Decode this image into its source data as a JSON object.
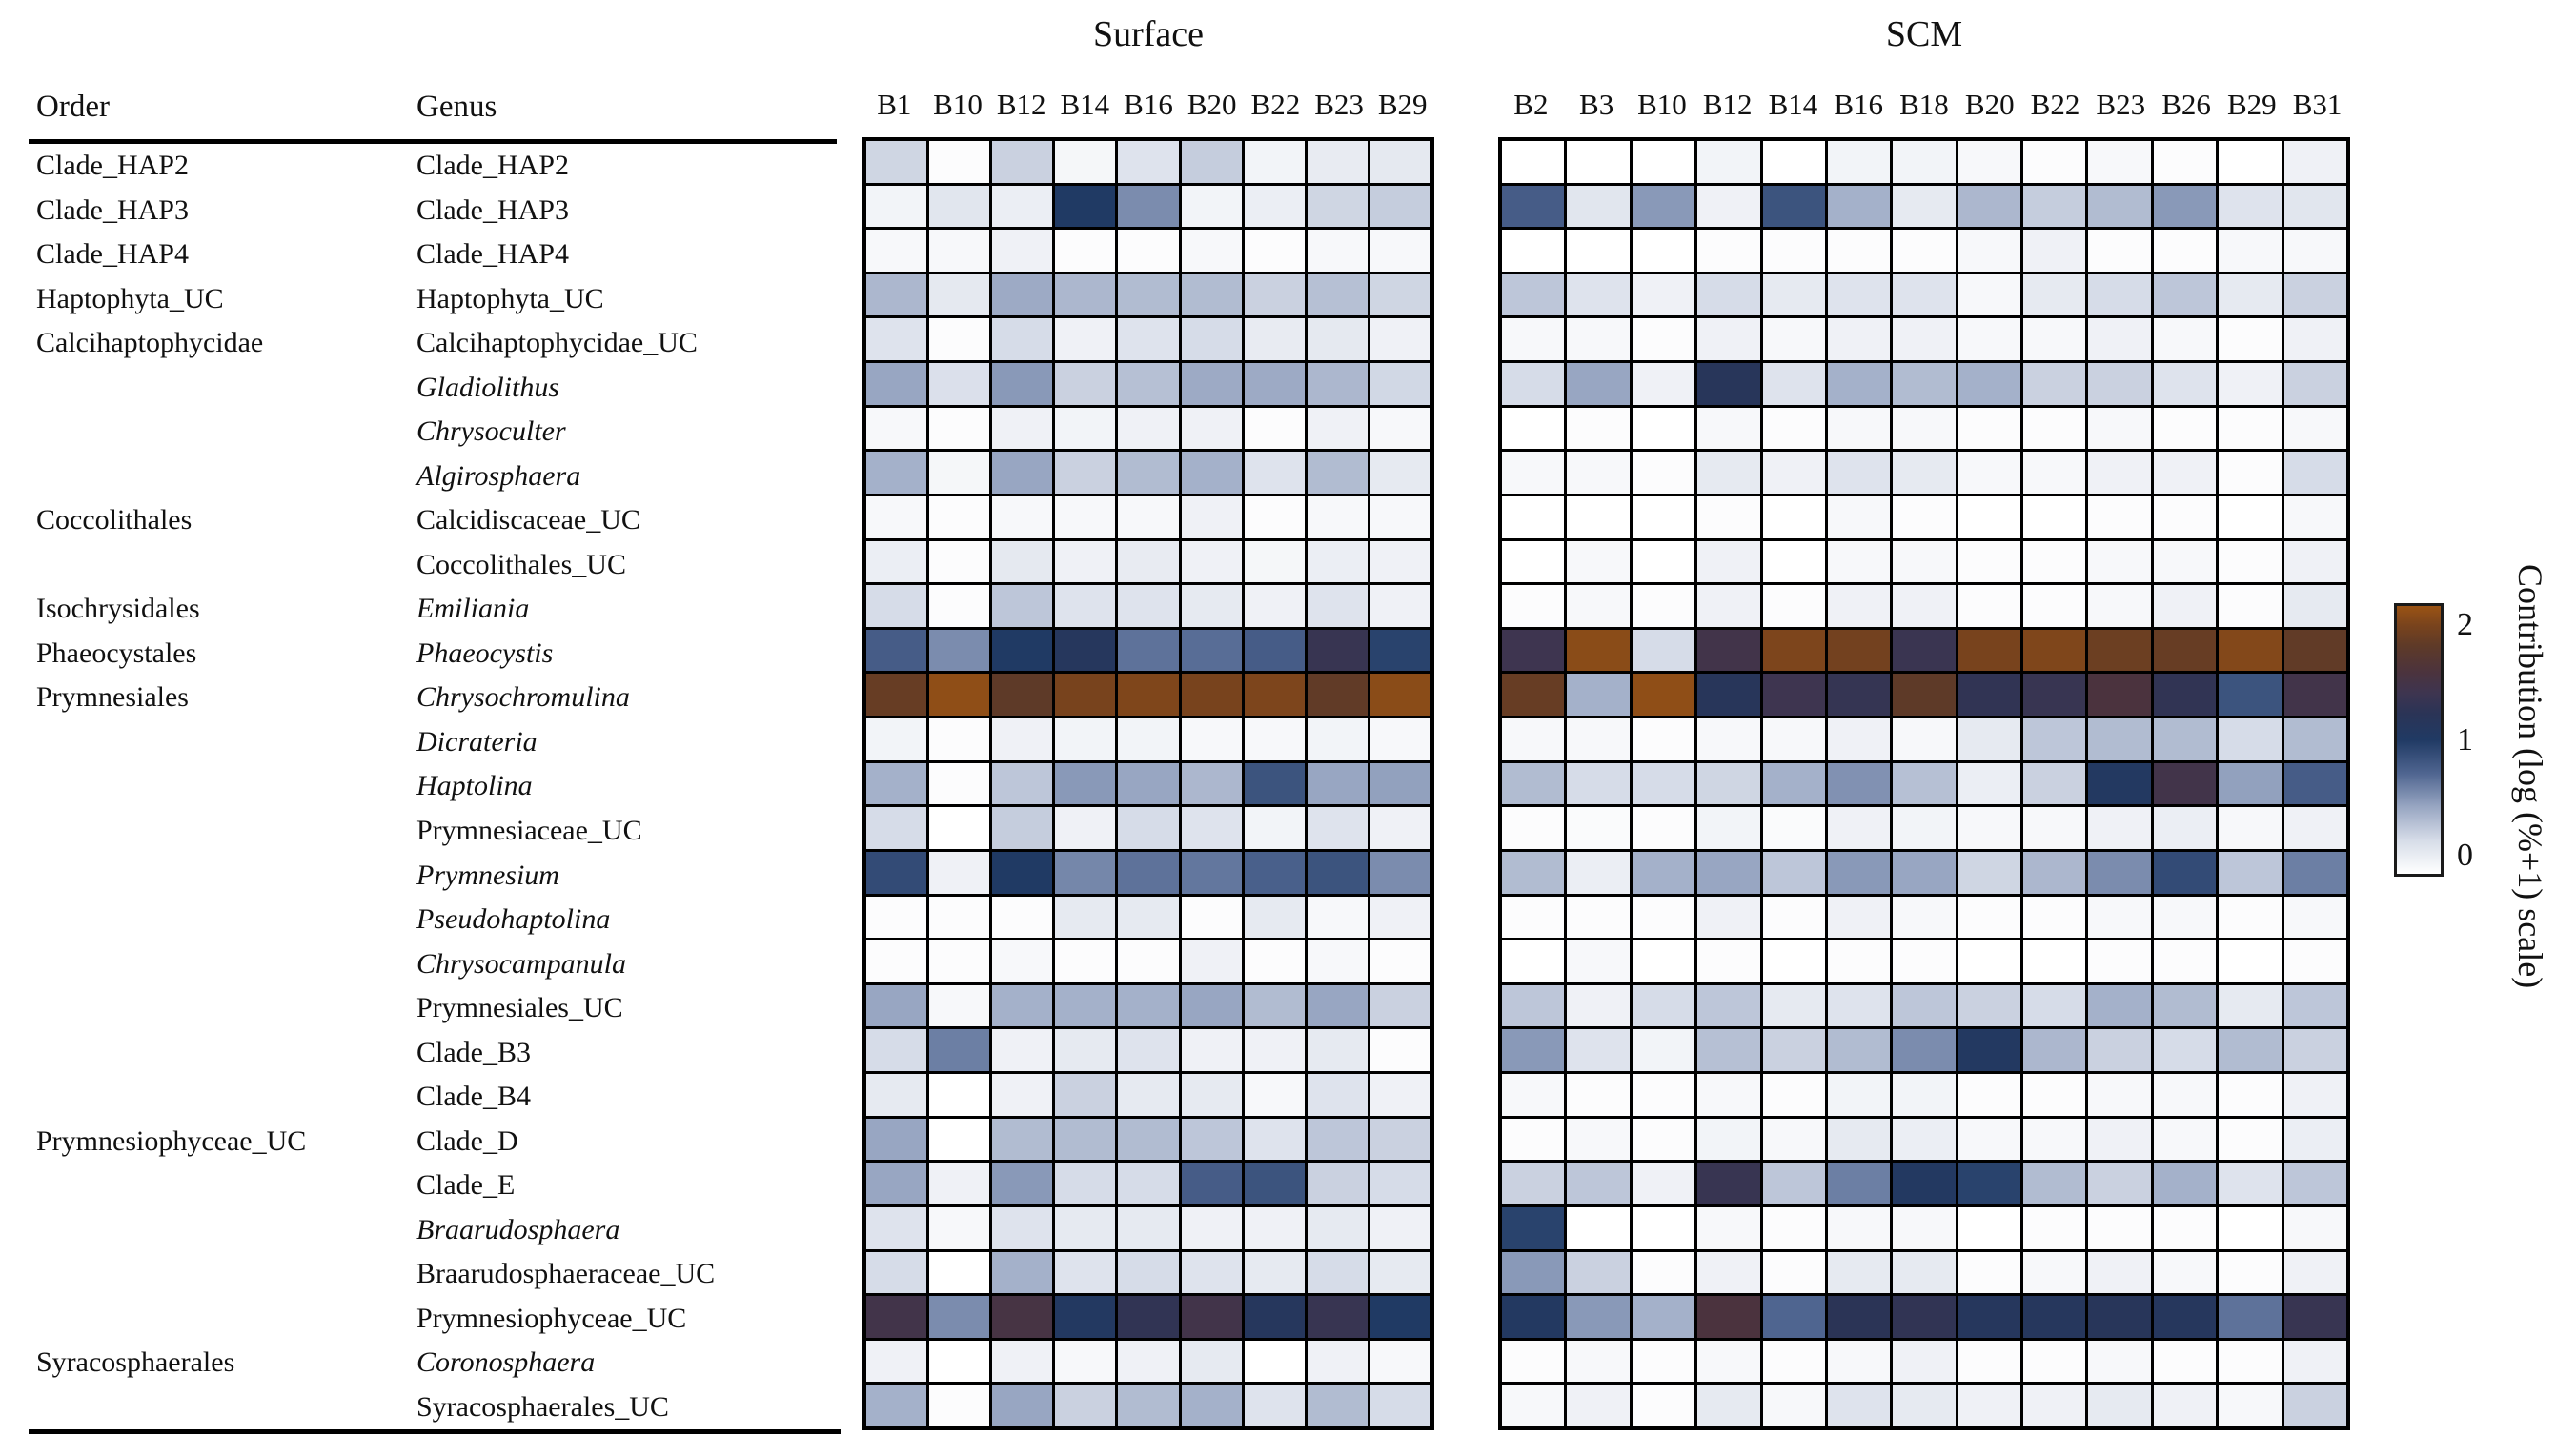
{
  "chart_data": {
    "type": "heatmap",
    "title": "",
    "value_range": [
      0,
      2
    ],
    "grid": true,
    "row_header_labels": {
      "order": "Order",
      "genus": "Genus"
    },
    "panels": [
      {
        "name": "Surface",
        "columns": [
          "B1",
          "B10",
          "B12",
          "B14",
          "B16",
          "B20",
          "B22",
          "B23",
          "B29"
        ]
      },
      {
        "name": "SCM",
        "columns": [
          "B2",
          "B3",
          "B10",
          "B12",
          "B14",
          "B16",
          "B18",
          "B20",
          "B22",
          "B23",
          "B26",
          "B29",
          "B31"
        ]
      }
    ],
    "colorbar": {
      "label": "Contribution (log (%+1) scale)",
      "ticks": [
        "2",
        "1",
        "0"
      ],
      "tick_values": [
        2,
        1,
        0
      ],
      "position": "right"
    },
    "colormap_stops": [
      [
        0.0,
        "#ffffff"
      ],
      [
        0.25,
        "#d6dce8"
      ],
      [
        0.5,
        "#98a6c2"
      ],
      [
        0.75,
        "#4f6590"
      ],
      [
        1.0,
        "#203a64"
      ],
      [
        1.2,
        "#2b3456"
      ],
      [
        1.35,
        "#3e3550"
      ],
      [
        1.5,
        "#4b333e"
      ],
      [
        1.7,
        "#5e3a28"
      ],
      [
        1.85,
        "#78431d"
      ],
      [
        2.0,
        "#9a5314"
      ]
    ],
    "rows": [
      {
        "order": "Clade_HAP2",
        "genus": "Clade_HAP2",
        "italic": false,
        "surface": [
          0.28,
          0.02,
          0.3,
          0.06,
          0.2,
          0.32,
          0.08,
          0.14,
          0.16
        ],
        "scm": [
          0,
          0,
          0,
          0.08,
          0,
          0.08,
          0.08,
          0.05,
          0.02,
          0.05,
          0.02,
          0,
          0.1
        ]
      },
      {
        "order": "Clade_HAP3",
        "genus": "Clade_HAP3",
        "italic": false,
        "surface": [
          0.08,
          0.18,
          0.12,
          1.0,
          0.6,
          0.08,
          0.12,
          0.28,
          0.32
        ],
        "scm": [
          0.8,
          0.18,
          0.55,
          0.1,
          0.85,
          0.45,
          0.15,
          0.42,
          0.32,
          0.4,
          0.55,
          0.2,
          0.18
        ]
      },
      {
        "order": "Clade_HAP4",
        "genus": "Clade_HAP4",
        "italic": false,
        "surface": [
          0.05,
          0.05,
          0.1,
          0.02,
          0.02,
          0.05,
          0.02,
          0.05,
          0.05
        ],
        "scm": [
          0,
          0,
          0,
          0.02,
          0.02,
          0.02,
          0.02,
          0.05,
          0.1,
          0.02,
          0.02,
          0.05,
          0.05
        ]
      },
      {
        "order": "Haptophyta_UC",
        "genus": "Haptophyta_UC",
        "italic": false,
        "surface": [
          0.42,
          0.16,
          0.48,
          0.42,
          0.4,
          0.4,
          0.3,
          0.38,
          0.28
        ],
        "scm": [
          0.35,
          0.2,
          0.1,
          0.25,
          0.15,
          0.2,
          0.2,
          0.05,
          0.15,
          0.25,
          0.35,
          0.15,
          0.3
        ]
      },
      {
        "order": "Calcihaptophycidae",
        "genus": "Calcihaptophycidae_UC",
        "italic": false,
        "surface": [
          0.2,
          0.02,
          0.25,
          0.1,
          0.2,
          0.25,
          0.14,
          0.16,
          0.1
        ],
        "scm": [
          0.05,
          0.05,
          0.02,
          0.1,
          0.05,
          0.1,
          0.1,
          0.05,
          0.05,
          0.1,
          0.05,
          0.02,
          0.1
        ]
      },
      {
        "order": "",
        "genus": "Gladiolithus",
        "italic": true,
        "surface": [
          0.5,
          0.22,
          0.55,
          0.3,
          0.38,
          0.48,
          0.48,
          0.42,
          0.27
        ],
        "scm": [
          0.25,
          0.5,
          0.1,
          1.15,
          0.2,
          0.45,
          0.4,
          0.45,
          0.3,
          0.3,
          0.2,
          0.1,
          0.3
        ]
      },
      {
        "order": "",
        "genus": "Chrysoculter",
        "italic": true,
        "surface": [
          0.05,
          0.02,
          0.1,
          0.08,
          0.1,
          0.1,
          0.02,
          0.1,
          0.05
        ],
        "scm": [
          0,
          0.02,
          0,
          0.05,
          0.02,
          0.05,
          0.05,
          0.02,
          0.02,
          0.05,
          0.02,
          0.02,
          0.05
        ]
      },
      {
        "order": "",
        "genus": "Algirosphaera",
        "italic": true,
        "surface": [
          0.45,
          0.06,
          0.5,
          0.3,
          0.4,
          0.45,
          0.2,
          0.4,
          0.15
        ],
        "scm": [
          0.05,
          0.05,
          0.02,
          0.15,
          0.1,
          0.2,
          0.15,
          0.05,
          0.05,
          0.1,
          0.1,
          0.02,
          0.25
        ]
      },
      {
        "order": "Coccolithales",
        "genus": "Calcidiscaceae_UC",
        "italic": false,
        "surface": [
          0.05,
          0.02,
          0.05,
          0.05,
          0.05,
          0.1,
          0.02,
          0.05,
          0.05
        ],
        "scm": [
          0,
          0,
          0,
          0.02,
          0,
          0.05,
          0.02,
          0,
          0,
          0.02,
          0.02,
          0,
          0.05
        ]
      },
      {
        "order": "",
        "genus": "Coccolithales_UC",
        "italic": false,
        "surface": [
          0.12,
          0.02,
          0.16,
          0.1,
          0.14,
          0.1,
          0.06,
          0.12,
          0.1
        ],
        "scm": [
          0,
          0.05,
          0,
          0.1,
          0,
          0.05,
          0.05,
          0.02,
          0.02,
          0.05,
          0.05,
          0.02,
          0.1
        ]
      },
      {
        "order": "Isochrysidales",
        "genus": "Emiliania",
        "italic": true,
        "surface": [
          0.25,
          0.02,
          0.35,
          0.2,
          0.2,
          0.15,
          0.1,
          0.2,
          0.1
        ],
        "scm": [
          0.02,
          0.05,
          0.02,
          0.1,
          0.02,
          0.1,
          0.1,
          0.02,
          0.02,
          0.05,
          0.1,
          0.02,
          0.15
        ]
      },
      {
        "order": "Phaeocystales",
        "genus": "Phaeocystis",
        "italic": true,
        "surface": [
          0.8,
          0.6,
          1.0,
          1.1,
          0.7,
          0.72,
          0.8,
          1.3,
          0.95
        ],
        "scm": [
          1.35,
          1.93,
          0.25,
          1.4,
          1.87,
          1.82,
          1.32,
          1.85,
          1.88,
          1.78,
          1.75,
          1.9,
          1.72
        ]
      },
      {
        "order": "Prymnesiales",
        "genus": "Chrysochromulina",
        "italic": true,
        "surface": [
          1.75,
          1.95,
          1.7,
          1.85,
          1.88,
          1.85,
          1.87,
          1.72,
          1.93
        ],
        "scm": [
          1.75,
          0.45,
          1.95,
          1.15,
          1.35,
          1.28,
          1.7,
          1.25,
          1.3,
          1.5,
          1.25,
          0.85,
          1.4
        ]
      },
      {
        "order": "",
        "genus": "Dicrateria",
        "italic": true,
        "surface": [
          0.08,
          0.02,
          0.1,
          0.08,
          0.08,
          0.05,
          0.05,
          0.08,
          0.05
        ],
        "scm": [
          0.05,
          0.05,
          0.02,
          0.05,
          0.05,
          0.1,
          0.05,
          0.15,
          0.35,
          0.4,
          0.4,
          0.25,
          0.4
        ]
      },
      {
        "order": "",
        "genus": "Haptolina",
        "italic": true,
        "surface": [
          0.45,
          0.02,
          0.35,
          0.55,
          0.5,
          0.42,
          0.85,
          0.5,
          0.52
        ],
        "scm": [
          0.4,
          0.25,
          0.25,
          0.28,
          0.45,
          0.58,
          0.38,
          0.12,
          0.3,
          1.05,
          1.4,
          0.52,
          0.8
        ]
      },
      {
        "order": "",
        "genus": "Prymnesiaceae_UC",
        "italic": false,
        "surface": [
          0.25,
          0,
          0.32,
          0.1,
          0.25,
          0.2,
          0.08,
          0.2,
          0.1
        ],
        "scm": [
          0.02,
          0.03,
          0.02,
          0.08,
          0.03,
          0.1,
          0.08,
          0.05,
          0.05,
          0.1,
          0.12,
          0.05,
          0.1
        ]
      },
      {
        "order": "",
        "genus": "Prymnesium",
        "italic": true,
        "surface": [
          0.9,
          0.1,
          1.0,
          0.62,
          0.7,
          0.68,
          0.78,
          0.85,
          0.6
        ],
        "scm": [
          0.4,
          0.12,
          0.45,
          0.5,
          0.35,
          0.55,
          0.5,
          0.28,
          0.42,
          0.6,
          0.9,
          0.35,
          0.65
        ]
      },
      {
        "order": "",
        "genus": "Pseudohaptolina",
        "italic": true,
        "surface": [
          0.02,
          0.02,
          0.02,
          0.15,
          0.15,
          0.02,
          0.15,
          0.05,
          0.1
        ],
        "scm": [
          0.02,
          0.02,
          0.02,
          0.1,
          0.02,
          0.1,
          0.05,
          0.02,
          0.02,
          0.05,
          0.05,
          0.02,
          0.05
        ]
      },
      {
        "order": "",
        "genus": "Chrysocampanula",
        "italic": true,
        "surface": [
          0.02,
          0.02,
          0.05,
          0.02,
          0.02,
          0.1,
          0.02,
          0.05,
          0.02
        ],
        "scm": [
          0,
          0.05,
          0,
          0.02,
          0,
          0.02,
          0.02,
          0,
          0,
          0.02,
          0.02,
          0,
          0.02
        ]
      },
      {
        "order": "",
        "genus": "Prymnesiales_UC",
        "italic": false,
        "surface": [
          0.5,
          0.05,
          0.45,
          0.45,
          0.45,
          0.5,
          0.4,
          0.5,
          0.3
        ],
        "scm": [
          0.35,
          0.1,
          0.25,
          0.35,
          0.15,
          0.2,
          0.35,
          0.3,
          0.25,
          0.45,
          0.4,
          0.15,
          0.35
        ]
      },
      {
        "order": "",
        "genus": "Clade_B3",
        "italic": false,
        "surface": [
          0.25,
          0.65,
          0.1,
          0.15,
          0.2,
          0.1,
          0.1,
          0.15,
          0.02
        ],
        "scm": [
          0.55,
          0.2,
          0.08,
          0.38,
          0.3,
          0.4,
          0.6,
          1.05,
          0.42,
          0.3,
          0.25,
          0.4,
          0.3
        ]
      },
      {
        "order": "",
        "genus": "Clade_B4",
        "italic": false,
        "surface": [
          0.15,
          0,
          0.1,
          0.3,
          0.15,
          0.15,
          0.05,
          0.2,
          0.1
        ],
        "scm": [
          0.05,
          0.02,
          0.02,
          0.05,
          0.02,
          0.08,
          0.08,
          0.02,
          0.02,
          0.05,
          0.05,
          0.02,
          0.1
        ]
      },
      {
        "order": "Prymnesiophyceae_UC",
        "genus": "Clade_D",
        "italic": false,
        "surface": [
          0.5,
          0,
          0.4,
          0.4,
          0.4,
          0.35,
          0.2,
          0.35,
          0.3
        ],
        "scm": [
          0.02,
          0.05,
          0.02,
          0.08,
          0.05,
          0.15,
          0.12,
          0.05,
          0.05,
          0.1,
          0.05,
          0.02,
          0.12
        ]
      },
      {
        "order": "",
        "genus": "Clade_E",
        "italic": false,
        "surface": [
          0.5,
          0.1,
          0.55,
          0.25,
          0.25,
          0.8,
          0.85,
          0.3,
          0.25
        ],
        "scm": [
          0.3,
          0.35,
          0.1,
          1.3,
          0.35,
          0.65,
          1.05,
          0.95,
          0.4,
          0.3,
          0.45,
          0.2,
          0.35
        ]
      },
      {
        "order": "",
        "genus": "Braarudosphaera",
        "italic": true,
        "surface": [
          0.2,
          0.05,
          0.2,
          0.15,
          0.15,
          0.1,
          0.1,
          0.15,
          0.1
        ],
        "scm": [
          0.95,
          0,
          0,
          0.05,
          0.02,
          0.05,
          0.05,
          0,
          0.02,
          0.02,
          0.02,
          0,
          0.05
        ]
      },
      {
        "order": "",
        "genus": "Braarudosphaeraceae_UC",
        "italic": false,
        "surface": [
          0.25,
          0,
          0.45,
          0.2,
          0.25,
          0.2,
          0.15,
          0.25,
          0.15
        ],
        "scm": [
          0.55,
          0.3,
          0.02,
          0.1,
          0.02,
          0.15,
          0.15,
          0.02,
          0.05,
          0.1,
          0.05,
          0.02,
          0.1
        ]
      },
      {
        "order": "",
        "genus": "Prymnesiophyceae_UC",
        "italic": false,
        "surface": [
          1.4,
          0.6,
          1.45,
          1.05,
          1.25,
          1.4,
          1.1,
          1.3,
          1.0
        ],
        "scm": [
          1.05,
          0.55,
          0.45,
          1.5,
          0.75,
          1.2,
          1.25,
          1.1,
          1.1,
          1.15,
          1.1,
          0.7,
          1.3
        ]
      },
      {
        "order": "Syracosphaerales",
        "genus": "Coronosphaera",
        "italic": true,
        "surface": [
          0.1,
          0,
          0.1,
          0.05,
          0.1,
          0.15,
          0,
          0.1,
          0.05
        ],
        "scm": [
          0.02,
          0.05,
          0.02,
          0.05,
          0.02,
          0.05,
          0.1,
          0.02,
          0.02,
          0.05,
          0.02,
          0.02,
          0.1
        ]
      },
      {
        "order": "",
        "genus": "Syracosphaerales_UC",
        "italic": false,
        "surface": [
          0.45,
          0.02,
          0.5,
          0.3,
          0.4,
          0.45,
          0.2,
          0.4,
          0.25
        ],
        "scm": [
          0.05,
          0.1,
          0.02,
          0.15,
          0.05,
          0.2,
          0.15,
          0.1,
          0.1,
          0.15,
          0.1,
          0.05,
          0.3
        ]
      }
    ]
  }
}
